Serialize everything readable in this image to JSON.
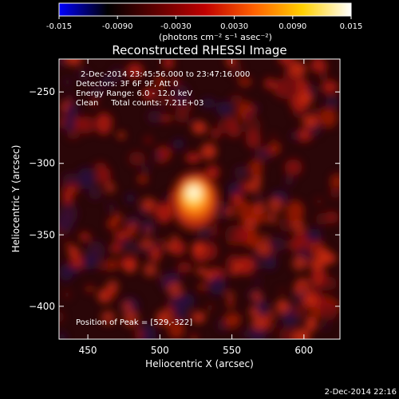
{
  "chart_data": {
    "type": "heatmap",
    "title": "Reconstructed RHESSI Image",
    "xlabel": "Heliocentric X (arcsec)",
    "ylabel": "Heliocentric Y (arcsec)",
    "xlim": [
      430,
      625
    ],
    "ylim": [
      -423,
      -227
    ],
    "xticks": [
      "450",
      "500",
      "550",
      "600"
    ],
    "yticks": [
      "-250",
      "-300",
      "-350",
      "-400"
    ],
    "annotations": [
      "2-Dec-2014 23:45:56.000 to 23:47:16.000",
      "Detectors: 3F 6F 9F, Att 0",
      "Energy Range: 6.0 - 12.0 keV",
      "Clean     Total counts: 7.21E+03"
    ],
    "peak_label": "Position of Peak = [529,-322]",
    "peak": {
      "x": 529,
      "y": -322
    },
    "colorbar": {
      "range": [
        -0.015,
        0.015
      ],
      "ticks": [
        "-0.015",
        "-0.0090",
        "-0.0030",
        "0.0030",
        "0.0090",
        "0.015"
      ],
      "unit_label": "(photons cm⁻² s⁻¹ asec⁻²)",
      "colors": [
        "#0000ff",
        "#000000",
        "#600000",
        "#c00000",
        "#ff6000",
        "#ffd000",
        "#ffffff"
      ]
    },
    "timestamp": "2-Dec-2014 22:16"
  }
}
